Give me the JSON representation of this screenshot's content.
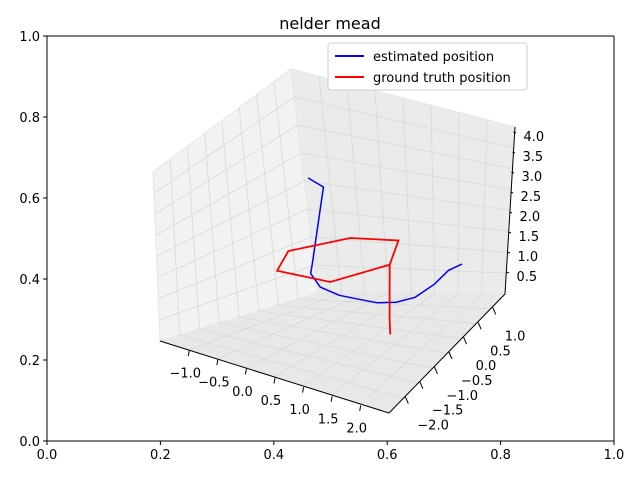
{
  "chart_data": {
    "type": "line",
    "projection": "3d",
    "title": "nelder mead",
    "outer_axes": {
      "xlim": [
        0,
        1
      ],
      "ylim": [
        0,
        1
      ],
      "xticks": [
        "0.0",
        "0.2",
        "0.4",
        "0.6",
        "0.8",
        "1.0"
      ],
      "yticks": [
        "0.0",
        "0.2",
        "0.4",
        "0.6",
        "0.8",
        "1.0"
      ]
    },
    "x_axis": {
      "range": [
        -1.5,
        2.5
      ],
      "ticks": [
        "−1.0",
        "−0.5",
        "0.0",
        "0.5",
        "1.0",
        "1.5",
        "2.0"
      ]
    },
    "y_axis": {
      "range": [
        -2.2,
        1.3
      ],
      "ticks": [
        "−2.0",
        "−1.5",
        "−1.0",
        "−0.5",
        "0.0",
        "0.5",
        "1.0"
      ]
    },
    "z_axis": {
      "range": [
        0.2,
        4.0
      ],
      "ticks": [
        "0.5",
        "1.0",
        "1.5",
        "2.0",
        "2.5",
        "3.0",
        "3.5",
        "4.0"
      ]
    },
    "legend_position": "top-right",
    "series": [
      {
        "name": "estimated position",
        "color": "#0000ff",
        "approx_path": [
          [
            -0.7,
            0.0,
            3.7
          ],
          [
            -0.55,
            0.2,
            3.4
          ],
          [
            -0.5,
            0.1,
            3.0
          ],
          [
            -0.45,
            0.0,
            2.6
          ],
          [
            -0.4,
            -0.1,
            2.2
          ],
          [
            -0.35,
            -0.2,
            1.8
          ],
          [
            -0.3,
            -0.3,
            1.5
          ],
          [
            -0.1,
            -0.3,
            1.2
          ],
          [
            0.2,
            -0.2,
            1.0
          ],
          [
            0.5,
            -0.1,
            0.9
          ],
          [
            0.8,
            0.0,
            0.8
          ],
          [
            1.1,
            0.1,
            0.8
          ],
          [
            1.4,
            0.2,
            0.9
          ],
          [
            1.7,
            0.3,
            1.2
          ],
          [
            1.9,
            0.4,
            1.5
          ],
          [
            2.1,
            0.5,
            1.6
          ]
        ]
      },
      {
        "name": "ground truth position",
        "color": "#ff0000",
        "approx_path": [
          [
            1.0,
            0.0,
            1.8
          ],
          [
            0.5,
            0.87,
            1.8
          ],
          [
            -0.5,
            0.87,
            1.8
          ],
          [
            -1.0,
            0.0,
            1.8
          ],
          [
            -0.5,
            -0.87,
            1.8
          ],
          [
            0.5,
            -0.87,
            1.8
          ],
          [
            1.0,
            0.0,
            1.8
          ],
          [
            1.2,
            -0.2,
            0.6
          ],
          [
            1.3,
            -0.3,
            0.3
          ]
        ]
      }
    ]
  }
}
